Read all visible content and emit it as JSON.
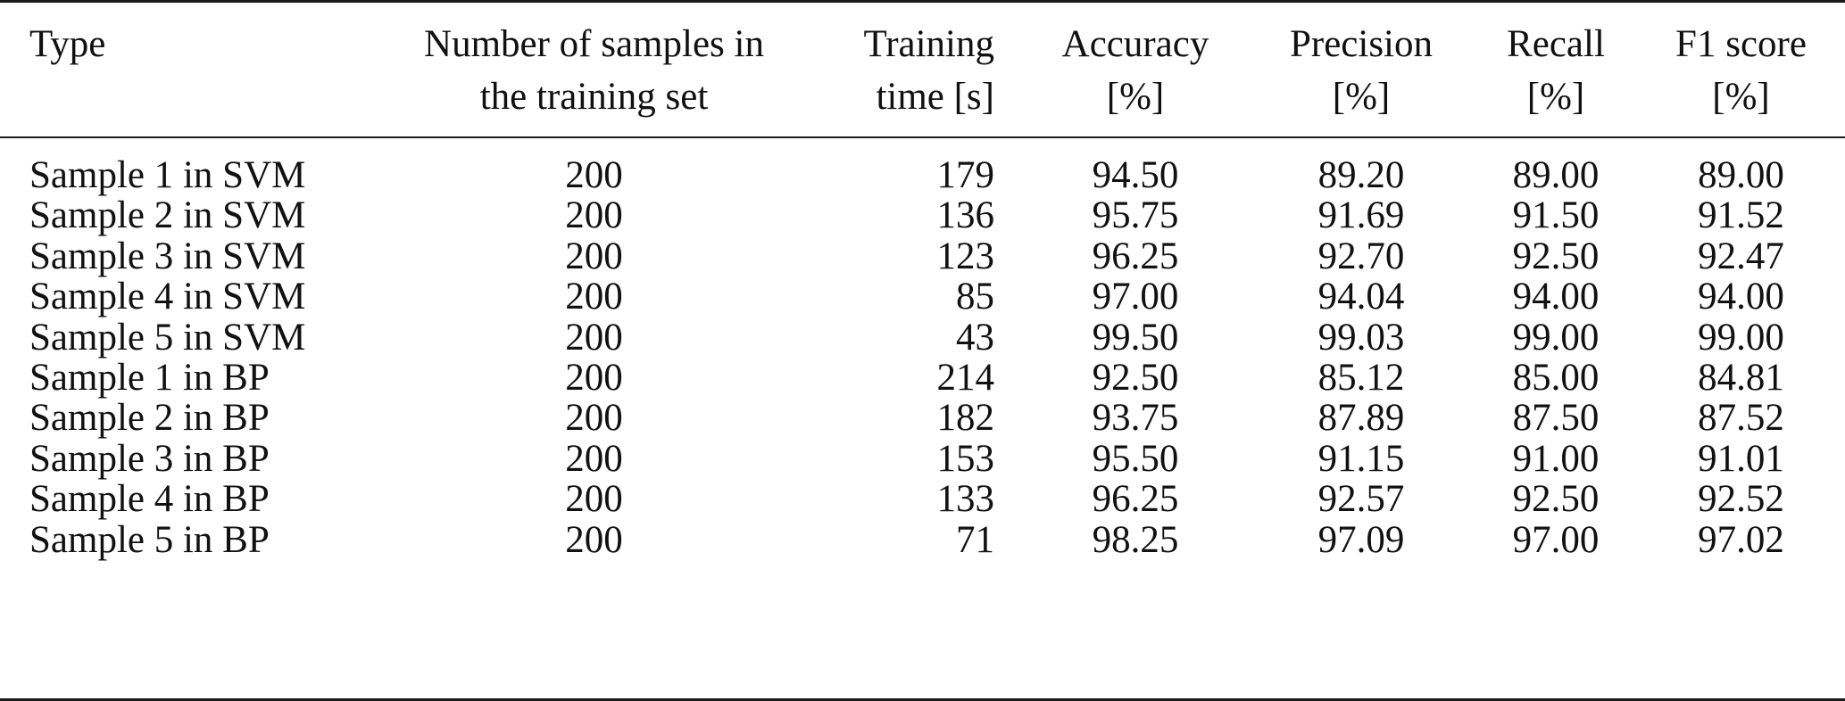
{
  "headers": [
    [
      "Type"
    ],
    [
      "Number of samples in",
      "the training set"
    ],
    [
      "Training",
      "time [s]"
    ],
    [
      "Accuracy",
      "[%]"
    ],
    [
      "Precision",
      "[%]"
    ],
    [
      "Recall",
      "[%]"
    ],
    [
      "F1 score",
      "[%]"
    ]
  ],
  "rows": [
    [
      "Sample 1 in SVM",
      "200",
      "179",
      "94.50",
      "89.20",
      "89.00",
      "89.00"
    ],
    [
      "Sample 2 in SVM",
      "200",
      "136",
      "95.75",
      "91.69",
      "91.50",
      "91.52"
    ],
    [
      "Sample 3 in SVM",
      "200",
      "123",
      "96.25",
      "92.70",
      "92.50",
      "92.47"
    ],
    [
      "Sample 4 in SVM",
      "200",
      "85",
      "97.00",
      "94.04",
      "94.00",
      "94.00"
    ],
    [
      "Sample 5 in SVM",
      "200",
      "43",
      "99.50",
      "99.03",
      "99.00",
      "99.00"
    ],
    [
      "Sample 1 in BP",
      "200",
      "214",
      "92.50",
      "85.12",
      "85.00",
      "84.81"
    ],
    [
      "Sample 2 in BP",
      "200",
      "182",
      "93.75",
      "87.89",
      "87.50",
      "87.52"
    ],
    [
      "Sample 3 in BP",
      "200",
      "153",
      "95.50",
      "91.15",
      "91.00",
      "91.01"
    ],
    [
      "Sample 4 in BP",
      "200",
      "133",
      "96.25",
      "92.57",
      "92.50",
      "92.52"
    ],
    [
      "Sample 5 in BP",
      "200",
      "71",
      "98.25",
      "97.09",
      "97.00",
      "97.02"
    ]
  ]
}
